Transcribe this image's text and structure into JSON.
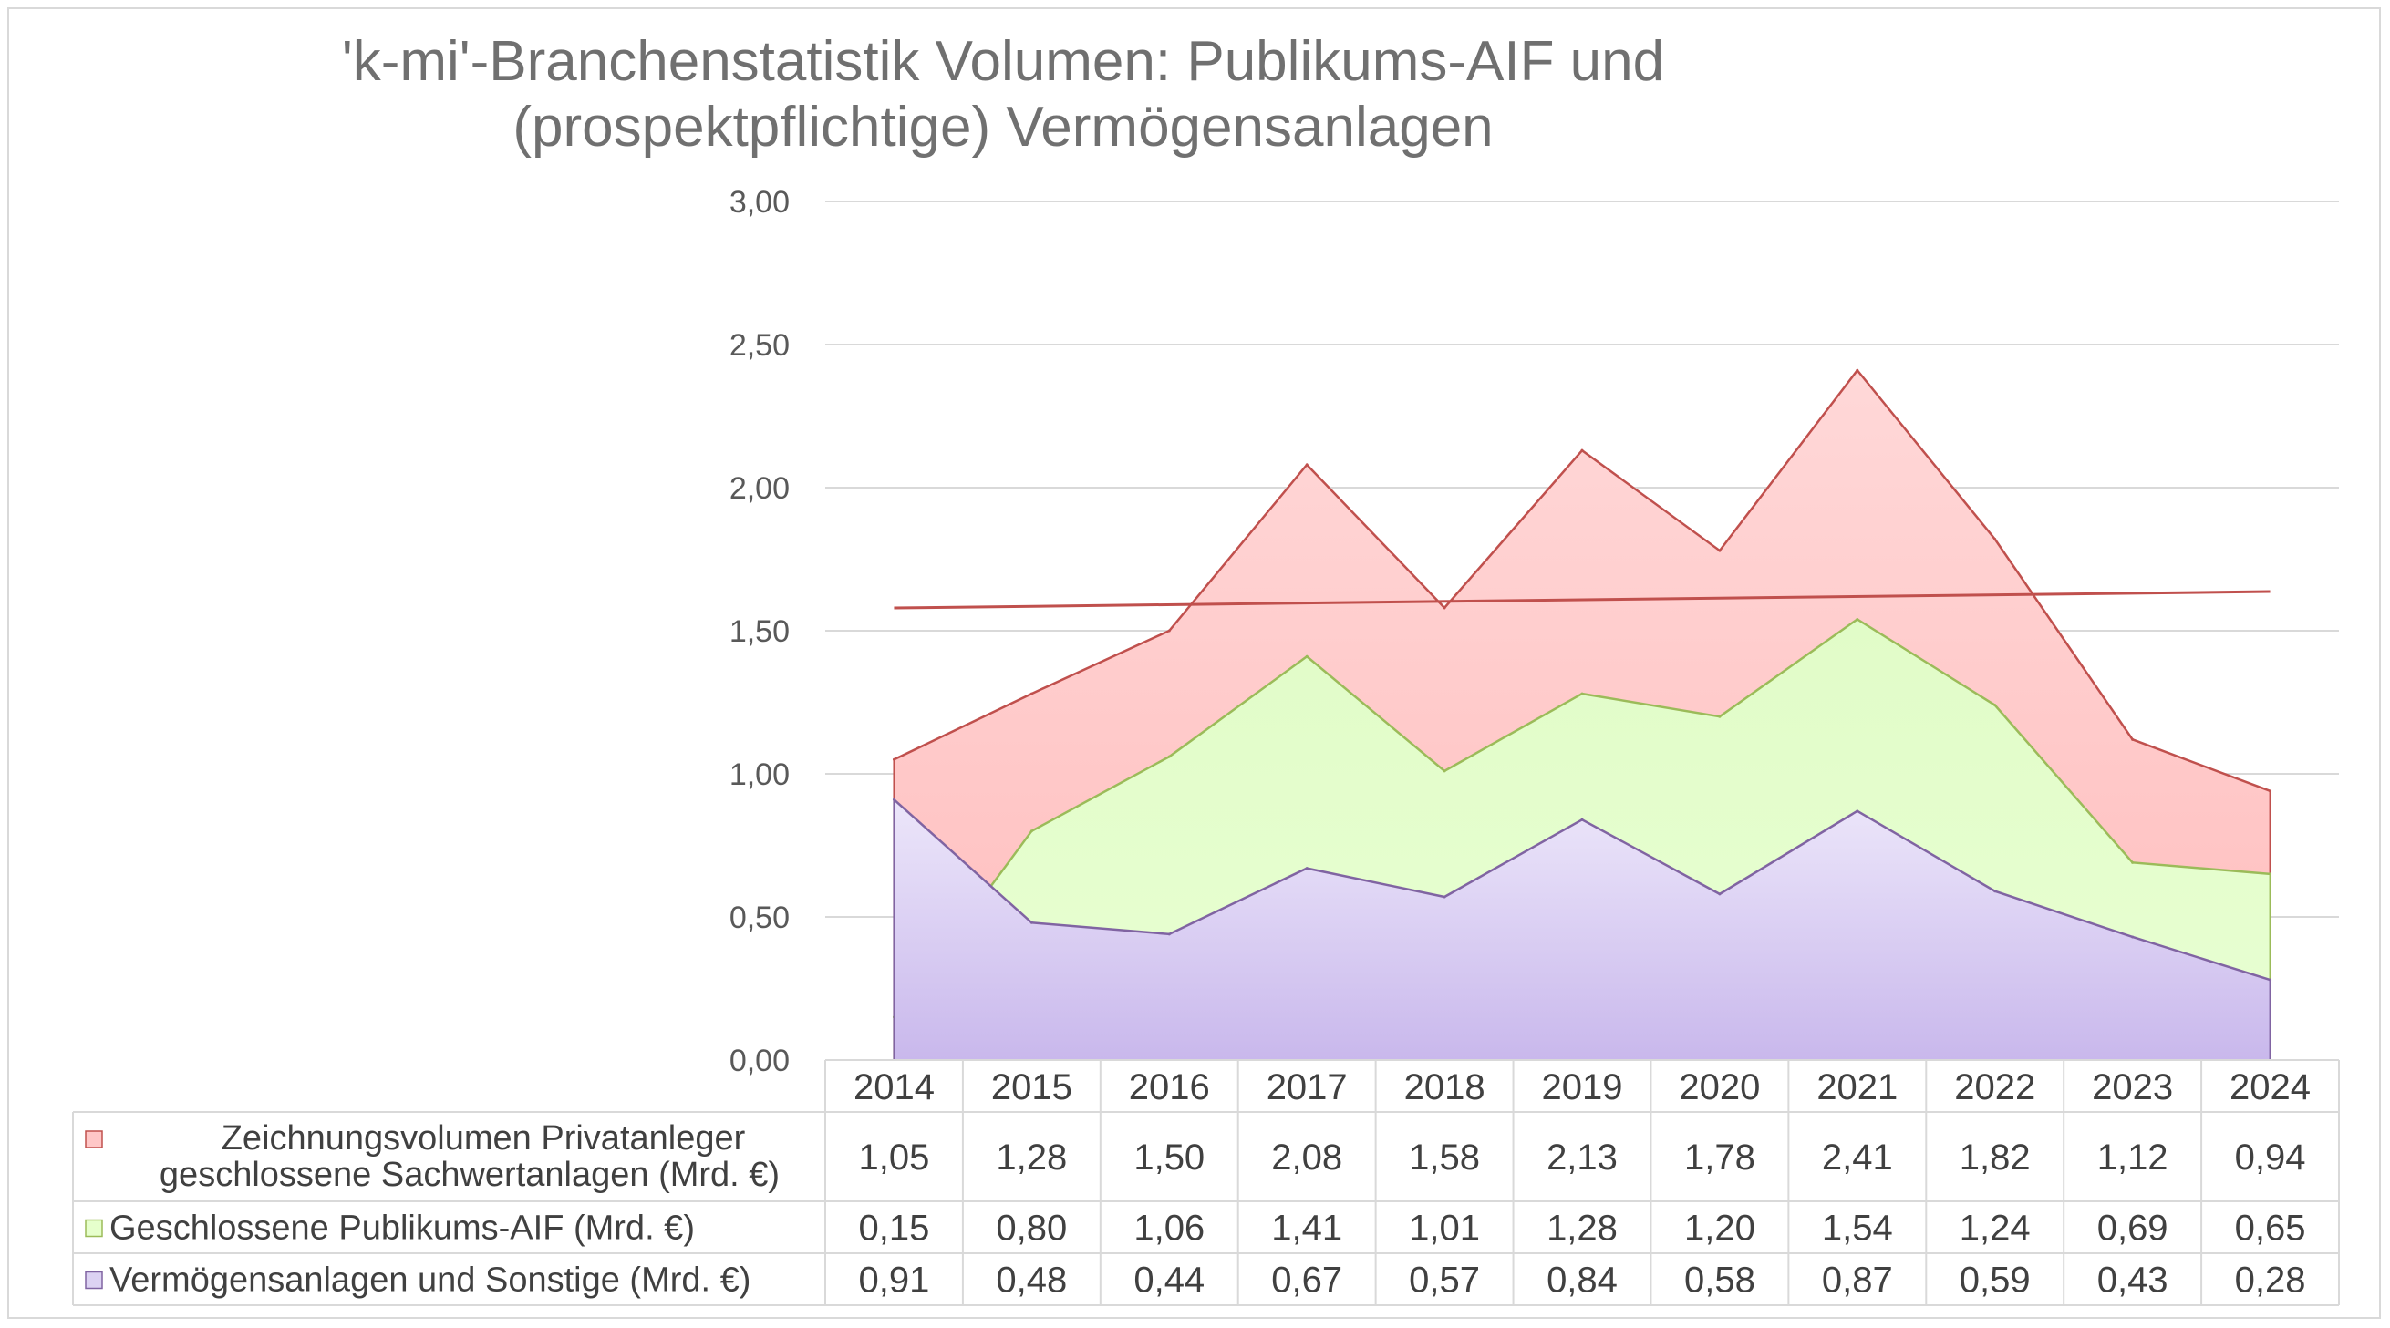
{
  "chart_data": {
    "type": "area",
    "title": "'k-mi'-Branchenstatistik Volumen: Publikums-AIF und (prospektpflichtige) Vermögensanlagen",
    "title_lines": [
      "'k-mi'-Branchenstatistik Volumen: Publikums-AIF und",
      "(prospektpflichtige) Vermögensanlagen"
    ],
    "categories": [
      "2014",
      "2015",
      "2016",
      "2017",
      "2018",
      "2019",
      "2020",
      "2021",
      "2022",
      "2023",
      "2024"
    ],
    "ylim": [
      0,
      3
    ],
    "y_ticks": [
      "0,00",
      "0,50",
      "1,00",
      "1,50",
      "2,00",
      "2,50",
      "3,00"
    ],
    "grid": true,
    "legend": "data table below chart",
    "series": [
      {
        "name": "Zeichnungsvolumen Privatanleger geschlossene Sachwertanlagen (Mrd. €)",
        "label_lines": [
          "Zeichnungsvolumen Privatanleger",
          "geschlossene Sachwertanlagen (Mrd. €)"
        ],
        "values": [
          1.05,
          1.28,
          1.5,
          2.08,
          1.58,
          2.13,
          1.78,
          2.41,
          1.82,
          1.12,
          0.94
        ],
        "display": [
          "1,05",
          "1,28",
          "1,50",
          "2,08",
          "1,58",
          "2,13",
          "1,78",
          "2,41",
          "1,82",
          "1,12",
          "0,94"
        ],
        "color": "#ffc7c7",
        "line_color": "#c0504d"
      },
      {
        "name": "Geschlossene Publikums-AIF (Mrd. €)",
        "values": [
          0.15,
          0.8,
          1.06,
          1.41,
          1.01,
          1.28,
          1.2,
          1.54,
          1.24,
          0.69,
          0.65
        ],
        "display": [
          "0,15",
          "0,80",
          "1,06",
          "1,41",
          "1,01",
          "1,28",
          "1,20",
          "1,54",
          "1,24",
          "0,69",
          "0,65"
        ],
        "color": "#e6ffcc",
        "line_color": "#9bbb59"
      },
      {
        "name": "Vermögensanlagen und Sonstige (Mrd. €)",
        "values": [
          0.91,
          0.48,
          0.44,
          0.67,
          0.57,
          0.84,
          0.58,
          0.87,
          0.59,
          0.43,
          0.28
        ],
        "display": [
          "0,91",
          "0,48",
          "0,44",
          "0,67",
          "0,57",
          "0,84",
          "0,58",
          "0,87",
          "0,59",
          "0,43",
          "0,28"
        ],
        "color": "#dcd2f2",
        "line_color": "#8064a2"
      }
    ],
    "trendline": {
      "series": 0,
      "color": "#c0504d"
    }
  }
}
